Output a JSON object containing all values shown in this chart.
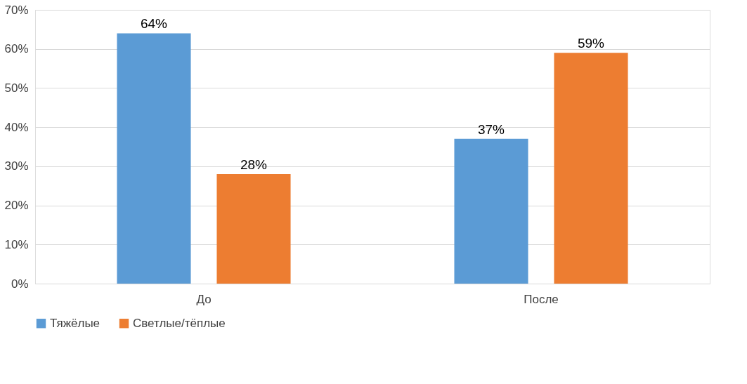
{
  "chart_data": {
    "type": "bar",
    "categories": [
      "До",
      "После"
    ],
    "series": [
      {
        "name": "Тяжёлые",
        "color": "#5b9bd5",
        "values": [
          64,
          37
        ],
        "value_labels": [
          "64%",
          "37%"
        ]
      },
      {
        "name": "Светлые/тёплые",
        "color": "#ed7d31",
        "values": [
          28,
          59
        ],
        "value_labels": [
          "28%",
          "59%"
        ]
      }
    ],
    "ylim": [
      0,
      70
    ],
    "yticks": [
      {
        "value": 0,
        "label": "0%"
      },
      {
        "value": 10,
        "label": "10%"
      },
      {
        "value": 20,
        "label": "20%"
      },
      {
        "value": 30,
        "label": "30%"
      },
      {
        "value": 40,
        "label": "40%"
      },
      {
        "value": 50,
        "label": "50%"
      },
      {
        "value": 60,
        "label": "60%"
      },
      {
        "value": 70,
        "label": "70%"
      }
    ],
    "grid": "y",
    "legend": "bottom"
  }
}
